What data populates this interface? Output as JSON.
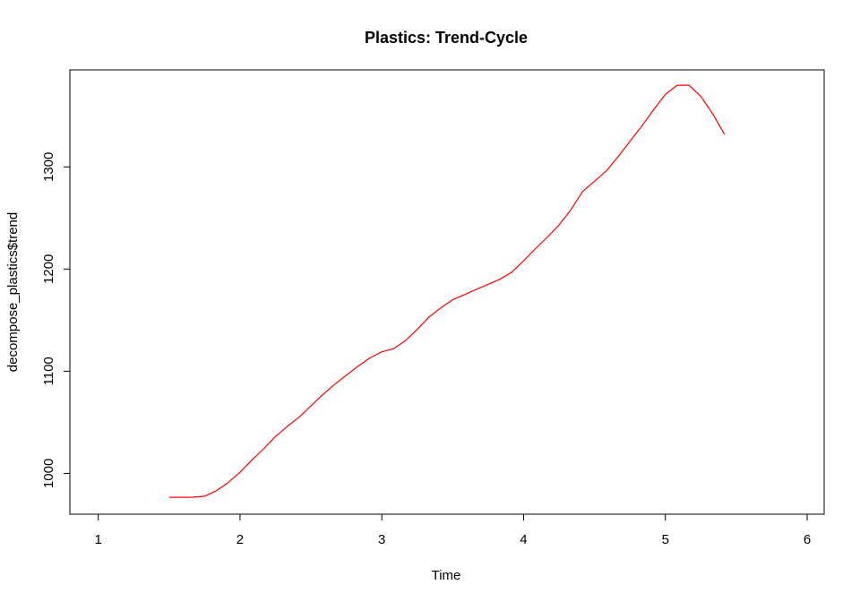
{
  "chart_data": {
    "type": "line",
    "title": "Plastics: Trend-Cycle",
    "xlabel": "Time",
    "ylabel": "decompose_plastics$trend",
    "xlim": [
      0.8,
      6.12
    ],
    "ylim": [
      960,
      1395
    ],
    "x_ticks": [
      1,
      2,
      3,
      4,
      5,
      6
    ],
    "y_ticks": [
      1000,
      1100,
      1200,
      1300
    ],
    "grid": false,
    "legend": "none",
    "line_color": "#ff0000",
    "series": [
      {
        "x": [
          1.5,
          1.5833,
          1.6667,
          1.75,
          1.8333,
          1.9167,
          2.0,
          2.0833,
          2.1667,
          2.25,
          2.3333,
          2.4167,
          2.5,
          2.5833,
          2.6667,
          2.75,
          2.8333,
          2.9167,
          3.0,
          3.0833,
          3.1667,
          3.25,
          3.3333,
          3.4167,
          3.5,
          3.5833,
          3.6667,
          3.75,
          3.8333,
          3.9167,
          4.0,
          4.0833,
          4.1667,
          4.25,
          4.3333,
          4.4167,
          4.5,
          4.5833,
          4.6667,
          4.75,
          4.8333,
          4.9167,
          5.0,
          5.0833,
          5.1667,
          5.25,
          5.3333,
          5.4167
        ],
        "values": [
          976.6,
          976.6,
          976.7,
          977.6,
          983.0,
          991.0,
          1001.0,
          1013.0,
          1024.0,
          1036.0,
          1046.0,
          1055.0,
          1066.0,
          1077.0,
          1087.0,
          1096.0,
          1105.0,
          1113.0,
          1119.0,
          1122.0,
          1130.0,
          1141.0,
          1153.0,
          1162.0,
          1170.0,
          1175.0,
          1180.0,
          1185.0,
          1190.0,
          1197.0,
          1208.0,
          1220.0,
          1231.0,
          1243.0,
          1258.0,
          1276.0,
          1286.0,
          1296.0,
          1310.0,
          1325.0,
          1340.0,
          1356.0,
          1371.0,
          1380.0,
          1380.0,
          1369.0,
          1352.0,
          1332.0
        ]
      }
    ]
  }
}
